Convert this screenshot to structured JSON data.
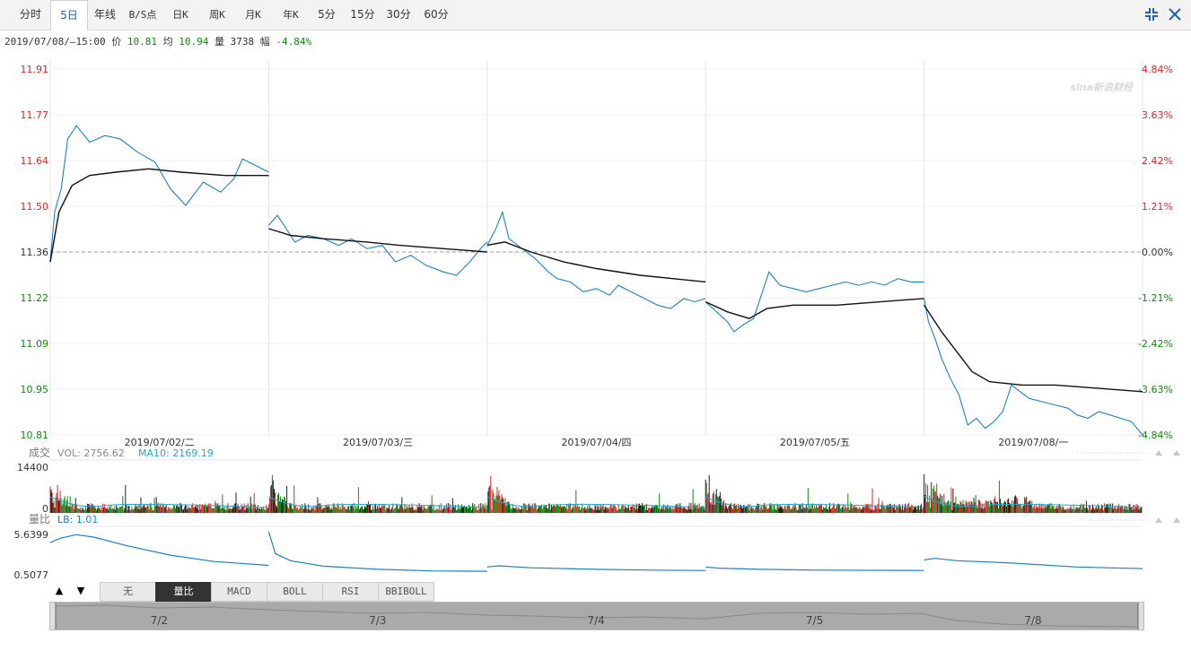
{
  "toolbar": {
    "tabs": [
      {
        "label": "分时",
        "name": "tab-timeshare"
      },
      {
        "label": "5日",
        "name": "tab-5day",
        "active": true
      },
      {
        "label": "年线",
        "name": "tab-year-line"
      },
      {
        "label": "B/S点",
        "name": "tab-bs-points"
      },
      {
        "label": "日K",
        "name": "tab-day-k"
      },
      {
        "label": "周K",
        "name": "tab-week-k"
      },
      {
        "label": "月K",
        "name": "tab-month-k"
      },
      {
        "label": "年K",
        "name": "tab-year-k"
      },
      {
        "label": "5分",
        "name": "tab-5min"
      },
      {
        "label": "15分",
        "name": "tab-15min"
      },
      {
        "label": "30分",
        "name": "tab-30min"
      },
      {
        "label": "60分",
        "name": "tab-60min"
      }
    ],
    "icons": [
      "compress-icon",
      "close-icon"
    ]
  },
  "info": {
    "datetime": "2019/07/08/—15:00",
    "price_label": "价",
    "price": "10.81",
    "avg_label": "均",
    "avg": "10.94",
    "vol_label": "量",
    "vol": "3738",
    "chg_label": "幅",
    "chg": "-4.84%"
  },
  "watermark": "sina新浪财经",
  "chart_data": {
    "type": "line",
    "prev_close": 11.36,
    "ylim": [
      10.81,
      11.91
    ],
    "y_ticks_left": [
      "11.91",
      "11.77",
      "11.64",
      "11.50",
      "11.36",
      "11.22",
      "11.09",
      "10.95",
      "10.81"
    ],
    "y_ticks_right": [
      "4.84%",
      "3.63%",
      "2.42%",
      "1.21%",
      "0.00%",
      "-1.21%",
      "-2.42%",
      "-3.63%",
      "-4.84%"
    ],
    "days": [
      "2019/07/02/二",
      "2019/07/03/三",
      "2019/07/04/四",
      "2019/07/05/五",
      "2019/07/08/一"
    ],
    "colors": {
      "price": "#1a82c8",
      "avg": "#111111",
      "up": "#e32222",
      "down": "#098d09",
      "flat": "#666666"
    },
    "series": [
      {
        "name": "price",
        "days": [
          [
            [
              0,
              11.33
            ],
            [
              0.02,
              11.48
            ],
            [
              0.05,
              11.55
            ],
            [
              0.08,
              11.7
            ],
            [
              0.12,
              11.74
            ],
            [
              0.18,
              11.69
            ],
            [
              0.25,
              11.71
            ],
            [
              0.32,
              11.7
            ],
            [
              0.4,
              11.66
            ],
            [
              0.48,
              11.63
            ],
            [
              0.55,
              11.55
            ],
            [
              0.62,
              11.5
            ],
            [
              0.7,
              11.57
            ],
            [
              0.78,
              11.54
            ],
            [
              0.84,
              11.58
            ],
            [
              0.88,
              11.64
            ],
            [
              0.94,
              11.62
            ],
            [
              1.0,
              11.6
            ]
          ],
          [
            [
              0,
              11.44
            ],
            [
              0.04,
              11.47
            ],
            [
              0.08,
              11.43
            ],
            [
              0.12,
              11.39
            ],
            [
              0.18,
              11.41
            ],
            [
              0.25,
              11.4
            ],
            [
              0.32,
              11.38
            ],
            [
              0.38,
              11.4
            ],
            [
              0.45,
              11.37
            ],
            [
              0.52,
              11.38
            ],
            [
              0.58,
              11.33
            ],
            [
              0.65,
              11.35
            ],
            [
              0.72,
              11.32
            ],
            [
              0.8,
              11.3
            ],
            [
              0.86,
              11.29
            ],
            [
              0.92,
              11.33
            ],
            [
              0.97,
              11.37
            ],
            [
              1.0,
              11.39
            ]
          ],
          [
            [
              0,
              11.38
            ],
            [
              0.04,
              11.43
            ],
            [
              0.07,
              11.48
            ],
            [
              0.1,
              11.4
            ],
            [
              0.16,
              11.37
            ],
            [
              0.22,
              11.34
            ],
            [
              0.28,
              11.3
            ],
            [
              0.32,
              11.28
            ],
            [
              0.38,
              11.27
            ],
            [
              0.44,
              11.24
            ],
            [
              0.5,
              11.25
            ],
            [
              0.56,
              11.23
            ],
            [
              0.6,
              11.26
            ],
            [
              0.66,
              11.24
            ],
            [
              0.72,
              11.22
            ],
            [
              0.78,
              11.2
            ],
            [
              0.84,
              11.19
            ],
            [
              0.9,
              11.22
            ],
            [
              0.95,
              11.21
            ],
            [
              1.0,
              11.22
            ]
          ],
          [
            [
              0,
              11.21
            ],
            [
              0.05,
              11.18
            ],
            [
              0.1,
              11.15
            ],
            [
              0.13,
              11.12
            ],
            [
              0.17,
              11.14
            ],
            [
              0.22,
              11.16
            ],
            [
              0.26,
              11.24
            ],
            [
              0.29,
              11.3
            ],
            [
              0.34,
              11.26
            ],
            [
              0.4,
              11.25
            ],
            [
              0.46,
              11.24
            ],
            [
              0.52,
              11.25
            ],
            [
              0.58,
              11.26
            ],
            [
              0.64,
              11.27
            ],
            [
              0.7,
              11.26
            ],
            [
              0.76,
              11.27
            ],
            [
              0.82,
              11.26
            ],
            [
              0.88,
              11.28
            ],
            [
              0.94,
              11.27
            ],
            [
              1.0,
              11.27
            ]
          ],
          [
            [
              0,
              11.22
            ],
            [
              0.02,
              11.15
            ],
            [
              0.05,
              11.1
            ],
            [
              0.08,
              11.04
            ],
            [
              0.12,
              10.98
            ],
            [
              0.16,
              10.93
            ],
            [
              0.2,
              10.84
            ],
            [
              0.24,
              10.86
            ],
            [
              0.28,
              10.83
            ],
            [
              0.32,
              10.85
            ],
            [
              0.36,
              10.88
            ],
            [
              0.4,
              10.96
            ],
            [
              0.44,
              10.94
            ],
            [
              0.48,
              10.92
            ],
            [
              0.54,
              10.91
            ],
            [
              0.6,
              10.9
            ],
            [
              0.66,
              10.89
            ],
            [
              0.7,
              10.87
            ],
            [
              0.75,
              10.86
            ],
            [
              0.8,
              10.88
            ],
            [
              0.85,
              10.87
            ],
            [
              0.9,
              10.86
            ],
            [
              0.95,
              10.85
            ],
            [
              1.0,
              10.81
            ]
          ]
        ]
      },
      {
        "name": "avg",
        "days": [
          [
            [
              0,
              11.33
            ],
            [
              0.04,
              11.48
            ],
            [
              0.1,
              11.56
            ],
            [
              0.18,
              11.59
            ],
            [
              0.3,
              11.6
            ],
            [
              0.45,
              11.61
            ],
            [
              0.6,
              11.6
            ],
            [
              0.8,
              11.59
            ],
            [
              1.0,
              11.59
            ]
          ],
          [
            [
              0,
              11.43
            ],
            [
              0.1,
              11.41
            ],
            [
              0.25,
              11.4
            ],
            [
              0.45,
              11.39
            ],
            [
              0.6,
              11.38
            ],
            [
              0.8,
              11.37
            ],
            [
              1.0,
              11.36
            ]
          ],
          [
            [
              0,
              11.38
            ],
            [
              0.08,
              11.39
            ],
            [
              0.2,
              11.36
            ],
            [
              0.35,
              11.33
            ],
            [
              0.5,
              11.31
            ],
            [
              0.7,
              11.29
            ],
            [
              1.0,
              11.27
            ]
          ],
          [
            [
              0,
              11.21
            ],
            [
              0.1,
              11.18
            ],
            [
              0.2,
              11.16
            ],
            [
              0.28,
              11.19
            ],
            [
              0.4,
              11.2
            ],
            [
              0.6,
              11.2
            ],
            [
              0.8,
              11.21
            ],
            [
              1.0,
              11.22
            ]
          ],
          [
            [
              0,
              11.2
            ],
            [
              0.08,
              11.12
            ],
            [
              0.15,
              11.06
            ],
            [
              0.22,
              11.0
            ],
            [
              0.3,
              10.97
            ],
            [
              0.45,
              10.96
            ],
            [
              0.6,
              10.96
            ],
            [
              0.8,
              10.95
            ],
            [
              1.0,
              10.94
            ]
          ]
        ]
      }
    ],
    "volume": {
      "label": "成交",
      "vol_text": "VOL: 2756.62",
      "ma_text": "MA10: 2169.19",
      "ymax": "14400",
      "ymin": "0"
    },
    "ratio": {
      "label": "量比",
      "lb_text": "LB: 1.01",
      "ymax": "5.6399",
      "ymin": "0.5077",
      "days": [
        [
          [
            0,
            4.6
          ],
          [
            0.05,
            5.2
          ],
          [
            0.12,
            5.6
          ],
          [
            0.2,
            5.3
          ],
          [
            0.35,
            4.2
          ],
          [
            0.55,
            3.0
          ],
          [
            0.75,
            2.2
          ],
          [
            1.0,
            1.7
          ]
        ],
        [
          [
            0,
            6.0
          ],
          [
            0.03,
            3.2
          ],
          [
            0.1,
            2.3
          ],
          [
            0.25,
            1.6
          ],
          [
            0.5,
            1.2
          ],
          [
            0.75,
            1.0
          ],
          [
            1.0,
            0.95
          ]
        ],
        [
          [
            0,
            1.5
          ],
          [
            0.05,
            1.65
          ],
          [
            0.2,
            1.4
          ],
          [
            0.5,
            1.2
          ],
          [
            0.75,
            1.1
          ],
          [
            1.0,
            1.05
          ]
        ],
        [
          [
            0,
            1.5
          ],
          [
            0.06,
            1.35
          ],
          [
            0.25,
            1.2
          ],
          [
            0.5,
            1.1
          ],
          [
            1.0,
            1.05
          ]
        ],
        [
          [
            0,
            2.4
          ],
          [
            0.05,
            2.6
          ],
          [
            0.15,
            2.3
          ],
          [
            0.4,
            2.0
          ],
          [
            0.7,
            1.5
          ],
          [
            1.0,
            1.3
          ]
        ]
      ]
    }
  },
  "indicator_tabs": [
    {
      "label": "无",
      "name": "indicator-none"
    },
    {
      "label": "量比",
      "name": "indicator-volume-ratio",
      "active": true
    },
    {
      "label": "MACD",
      "name": "indicator-macd"
    },
    {
      "label": "BOLL",
      "name": "indicator-boll"
    },
    {
      "label": "RSI",
      "name": "indicator-rsi"
    },
    {
      "label": "BBIBOLL",
      "name": "indicator-bbiboll"
    }
  ],
  "navigator": {
    "labels": [
      "7/2",
      "7/3",
      "7/4",
      "7/5",
      "7/8"
    ]
  }
}
